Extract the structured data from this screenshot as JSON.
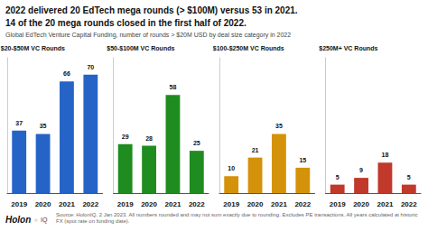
{
  "chart_data": {
    "type": "bar",
    "title": "2022 delivered 20 EdTech mega rounds (> $100M) versus 53 in 2021.\n14 of the 20 mega rounds closed in the first half of 2022.",
    "subtitle": "Global EdTech Venture Capital Funding, number of rounds > $20M USD by deal size category in 2022",
    "annotations": [
      "Holon",
      "○",
      "IQ",
      "Source: HolonIQ, 2 Jan 2023. All numbers rounded and may not sum exactly due to rounding. Excludes PE transactions. All years calculated at historic\nFX (spot rate on funding date)."
    ],
    "categories": [
      "2019",
      "2020",
      "2021",
      "2022"
    ],
    "series": [
      {
        "name": "$20-$50M VC Rounds",
        "color": "#2563c7",
        "values": [
          37,
          35,
          66,
          70
        ]
      },
      {
        "name": "$50-$100M VC Rounds",
        "color": "#1f8c1f",
        "values": [
          29,
          28,
          58,
          25
        ]
      },
      {
        "name": "$100-$250M VC Rounds",
        "color": "#d4920a",
        "values": [
          10,
          21,
          35,
          15
        ]
      },
      {
        "name": "$250M+ VC Rounds",
        "color": "#c0392b",
        "values": [
          5,
          9,
          18,
          5
        ]
      }
    ],
    "ylim": [
      0,
      80
    ],
    "data_labels": true,
    "tick_labels": "x",
    "grid": false
  }
}
